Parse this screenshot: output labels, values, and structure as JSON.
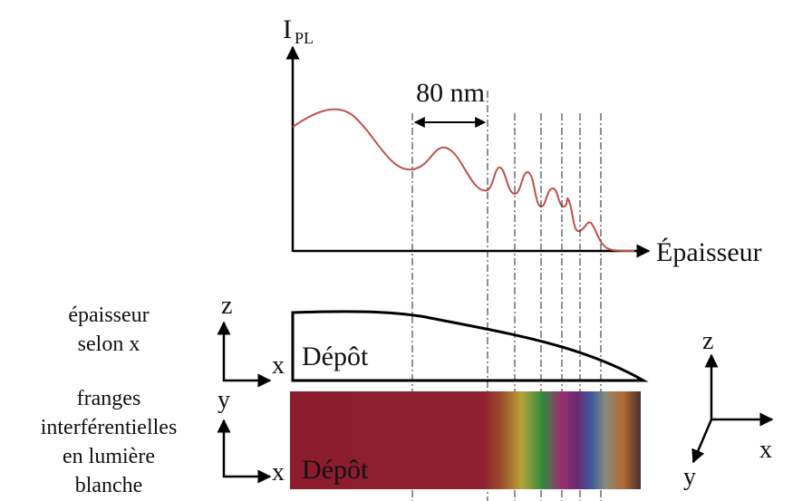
{
  "plot": {
    "y_label": "I",
    "y_label_sub": "PL",
    "x_label": "Épaisseur",
    "spacing_label": "80 nm"
  },
  "profile": {
    "caption": [
      "épaisseur",
      "selon x"
    ],
    "axis_z": "z",
    "axis_x": "x",
    "label": "Dépôt"
  },
  "fringes": {
    "caption": [
      "franges",
      "interférentielles",
      "en lumière",
      "blanche"
    ],
    "axis_y": "y",
    "axis_x": "x",
    "label": "Dépôt"
  },
  "axes_3d": {
    "z": "z",
    "x": "x",
    "y": "y"
  }
}
